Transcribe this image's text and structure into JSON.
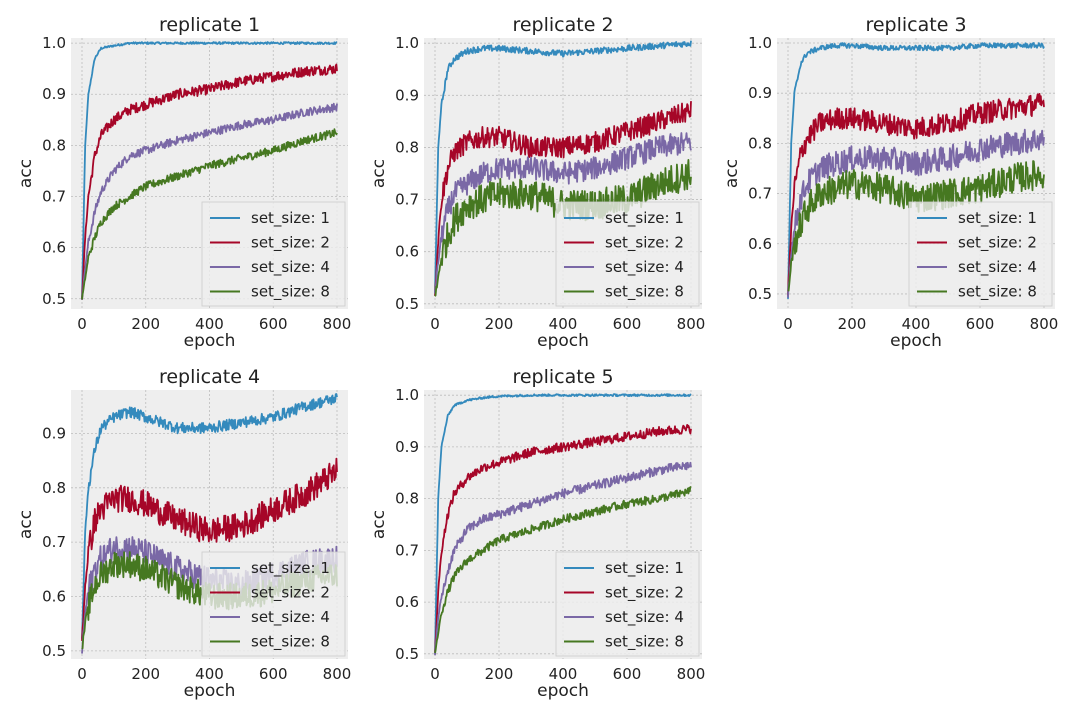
{
  "figure": {
    "series_colors": [
      "#348abd",
      "#a60628",
      "#7a68a6",
      "#467821"
    ],
    "plot_background": "#eeeeee",
    "grid_color": "#bcbcbc"
  },
  "chart_data": [
    {
      "type": "line",
      "title": "replicate 1",
      "xlabel": "epoch",
      "ylabel": "acc",
      "xlim": [
        0,
        800
      ],
      "ylim": [
        0.5,
        1.0
      ],
      "xticks": [
        "0",
        "200",
        "400",
        "600",
        "800"
      ],
      "yticks": [
        "0.5",
        "0.6",
        "0.7",
        "0.8",
        "0.9",
        "1.0"
      ],
      "grid": true,
      "legend_position": "bottom-right",
      "x": [
        0,
        10,
        20,
        40,
        60,
        100,
        150,
        200,
        300,
        400,
        500,
        600,
        700,
        800
      ],
      "series": [
        {
          "name": "set_size: 1",
          "values": [
            0.5,
            0.8,
            0.9,
            0.97,
            0.99,
            0.995,
            1.0,
            1.0,
            1.0,
            1.0,
            1.0,
            1.0,
            1.0,
            1.0
          ]
        },
        {
          "name": "set_size: 2",
          "values": [
            0.5,
            0.62,
            0.7,
            0.78,
            0.82,
            0.85,
            0.87,
            0.88,
            0.9,
            0.91,
            0.925,
            0.935,
            0.945,
            0.95
          ]
        },
        {
          "name": "set_size: 4",
          "values": [
            0.5,
            0.56,
            0.61,
            0.67,
            0.71,
            0.75,
            0.78,
            0.79,
            0.81,
            0.825,
            0.84,
            0.85,
            0.865,
            0.875
          ]
        },
        {
          "name": "set_size: 8",
          "values": [
            0.5,
            0.54,
            0.58,
            0.62,
            0.65,
            0.68,
            0.7,
            0.72,
            0.74,
            0.76,
            0.775,
            0.79,
            0.81,
            0.825
          ]
        }
      ]
    },
    {
      "type": "line",
      "title": "replicate 2",
      "xlabel": "epoch",
      "ylabel": "acc",
      "xlim": [
        0,
        800
      ],
      "ylim": [
        0.5,
        1.0
      ],
      "xticks": [
        "0",
        "200",
        "400",
        "600",
        "800"
      ],
      "yticks": [
        "0.5",
        "0.6",
        "0.7",
        "0.8",
        "0.9",
        "1.0"
      ],
      "grid": true,
      "legend_position": "bottom-right",
      "x": [
        0,
        10,
        20,
        40,
        60,
        100,
        150,
        200,
        300,
        400,
        500,
        600,
        700,
        800
      ],
      "series": [
        {
          "name": "set_size: 1",
          "values": [
            0.52,
            0.8,
            0.88,
            0.95,
            0.97,
            0.985,
            0.99,
            0.99,
            0.985,
            0.98,
            0.985,
            0.99,
            0.995,
            1.0
          ]
        },
        {
          "name": "set_size: 2",
          "values": [
            0.52,
            0.62,
            0.7,
            0.76,
            0.79,
            0.81,
            0.82,
            0.82,
            0.8,
            0.8,
            0.81,
            0.83,
            0.85,
            0.87
          ]
        },
        {
          "name": "set_size: 4",
          "values": [
            0.52,
            0.58,
            0.63,
            0.68,
            0.71,
            0.73,
            0.75,
            0.76,
            0.76,
            0.75,
            0.76,
            0.78,
            0.8,
            0.81
          ]
        },
        {
          "name": "set_size: 8",
          "values": [
            0.51,
            0.55,
            0.59,
            0.63,
            0.66,
            0.69,
            0.7,
            0.71,
            0.71,
            0.69,
            0.69,
            0.7,
            0.73,
            0.75
          ]
        }
      ]
    },
    {
      "type": "line",
      "title": "replicate 3",
      "xlabel": "epoch",
      "ylabel": "acc",
      "xlim": [
        0,
        800
      ],
      "ylim": [
        0.5,
        1.0
      ],
      "xticks": [
        "0",
        "200",
        "400",
        "600",
        "800"
      ],
      "yticks": [
        "0.5",
        "0.6",
        "0.7",
        "0.8",
        "0.9",
        "1.0"
      ],
      "grid": true,
      "legend_position": "bottom-right",
      "x": [
        0,
        10,
        20,
        40,
        60,
        100,
        150,
        200,
        300,
        400,
        500,
        600,
        700,
        800
      ],
      "series": [
        {
          "name": "set_size: 1",
          "values": [
            0.49,
            0.8,
            0.9,
            0.96,
            0.98,
            0.99,
            0.995,
            0.995,
            0.99,
            0.99,
            0.99,
            0.995,
            0.995,
            0.995
          ]
        },
        {
          "name": "set_size: 2",
          "values": [
            0.5,
            0.63,
            0.71,
            0.78,
            0.81,
            0.84,
            0.85,
            0.85,
            0.84,
            0.83,
            0.84,
            0.86,
            0.87,
            0.88
          ]
        },
        {
          "name": "set_size: 4",
          "values": [
            0.5,
            0.58,
            0.63,
            0.69,
            0.72,
            0.75,
            0.76,
            0.77,
            0.77,
            0.76,
            0.77,
            0.79,
            0.8,
            0.81
          ]
        },
        {
          "name": "set_size: 8",
          "values": [
            0.5,
            0.56,
            0.6,
            0.64,
            0.67,
            0.7,
            0.71,
            0.72,
            0.71,
            0.69,
            0.7,
            0.71,
            0.73,
            0.74
          ]
        }
      ]
    },
    {
      "type": "line",
      "title": "replicate 4",
      "xlabel": "epoch",
      "ylabel": "acc",
      "xlim": [
        0,
        800
      ],
      "ylim": [
        0.5,
        0.98
      ],
      "xticks": [
        "0",
        "200",
        "400",
        "600",
        "800"
      ],
      "yticks": [
        "0.5",
        "0.6",
        "0.7",
        "0.8",
        "0.9"
      ],
      "grid": true,
      "legend_position": "bottom-right",
      "x": [
        0,
        10,
        20,
        40,
        60,
        100,
        150,
        200,
        300,
        400,
        500,
        600,
        700,
        800
      ],
      "series": [
        {
          "name": "set_size: 1",
          "values": [
            0.52,
            0.72,
            0.8,
            0.87,
            0.91,
            0.93,
            0.94,
            0.93,
            0.91,
            0.91,
            0.92,
            0.93,
            0.95,
            0.965
          ]
        },
        {
          "name": "set_size: 2",
          "values": [
            0.52,
            0.62,
            0.68,
            0.74,
            0.76,
            0.78,
            0.78,
            0.77,
            0.74,
            0.72,
            0.73,
            0.76,
            0.79,
            0.83
          ]
        },
        {
          "name": "set_size: 4",
          "values": [
            0.5,
            0.57,
            0.61,
            0.65,
            0.67,
            0.69,
            0.69,
            0.68,
            0.65,
            0.63,
            0.62,
            0.64,
            0.66,
            0.67
          ]
        },
        {
          "name": "set_size: 8",
          "values": [
            0.5,
            0.55,
            0.58,
            0.62,
            0.64,
            0.66,
            0.66,
            0.65,
            0.62,
            0.6,
            0.6,
            0.61,
            0.63,
            0.64
          ]
        }
      ]
    },
    {
      "type": "line",
      "title": "replicate 5",
      "xlabel": "epoch",
      "ylabel": "acc",
      "xlim": [
        0,
        800
      ],
      "ylim": [
        0.5,
        1.0
      ],
      "xticks": [
        "0",
        "200",
        "400",
        "600",
        "800"
      ],
      "yticks": [
        "0.5",
        "0.6",
        "0.7",
        "0.8",
        "0.9",
        "1.0"
      ],
      "grid": true,
      "legend_position": "bottom-right",
      "x": [
        0,
        10,
        20,
        40,
        60,
        100,
        150,
        200,
        300,
        400,
        500,
        600,
        700,
        800
      ],
      "series": [
        {
          "name": "set_size: 1",
          "values": [
            0.5,
            0.8,
            0.9,
            0.96,
            0.98,
            0.99,
            0.995,
            0.998,
            1.0,
            1.0,
            1.0,
            1.0,
            1.0,
            1.0
          ]
        },
        {
          "name": "set_size: 2",
          "values": [
            0.5,
            0.62,
            0.7,
            0.77,
            0.81,
            0.84,
            0.86,
            0.87,
            0.89,
            0.9,
            0.91,
            0.92,
            0.93,
            0.935
          ]
        },
        {
          "name": "set_size: 4",
          "values": [
            0.5,
            0.57,
            0.61,
            0.66,
            0.7,
            0.74,
            0.76,
            0.77,
            0.79,
            0.81,
            0.825,
            0.84,
            0.855,
            0.865
          ]
        },
        {
          "name": "set_size: 8",
          "values": [
            0.5,
            0.54,
            0.58,
            0.62,
            0.65,
            0.68,
            0.7,
            0.72,
            0.74,
            0.76,
            0.775,
            0.79,
            0.8,
            0.815
          ]
        }
      ]
    }
  ]
}
